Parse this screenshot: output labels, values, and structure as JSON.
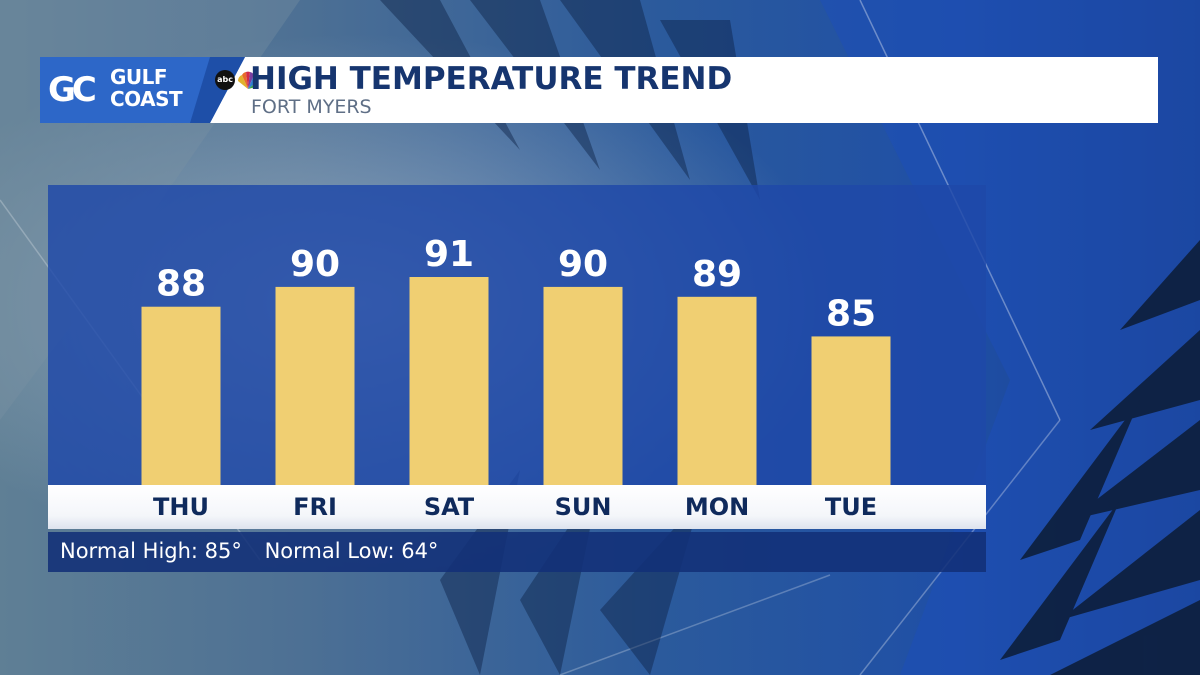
{
  "header": {
    "logo": {
      "mark": "GC",
      "line1": "GULF",
      "line2": "COAST",
      "network": "abc"
    },
    "title": "HIGH TEMPERATURE TREND",
    "subtitle": "FORT MYERS"
  },
  "footer": {
    "normal_high": "Normal High: 85°",
    "normal_low": "Normal Low: 64°"
  },
  "colors": {
    "bar": "#f0cf72",
    "panel": "#1e48a8",
    "title": "#16356f"
  },
  "chart_data": {
    "type": "bar",
    "title": "HIGH TEMPERATURE TREND",
    "subtitle": "FORT MYERS",
    "categories": [
      "THU",
      "FRI",
      "SAT",
      "SUN",
      "MON",
      "TUE"
    ],
    "values": [
      88,
      90,
      91,
      90,
      89,
      85
    ],
    "ylim": [
      70,
      93
    ],
    "grid": false,
    "legend": "none"
  }
}
